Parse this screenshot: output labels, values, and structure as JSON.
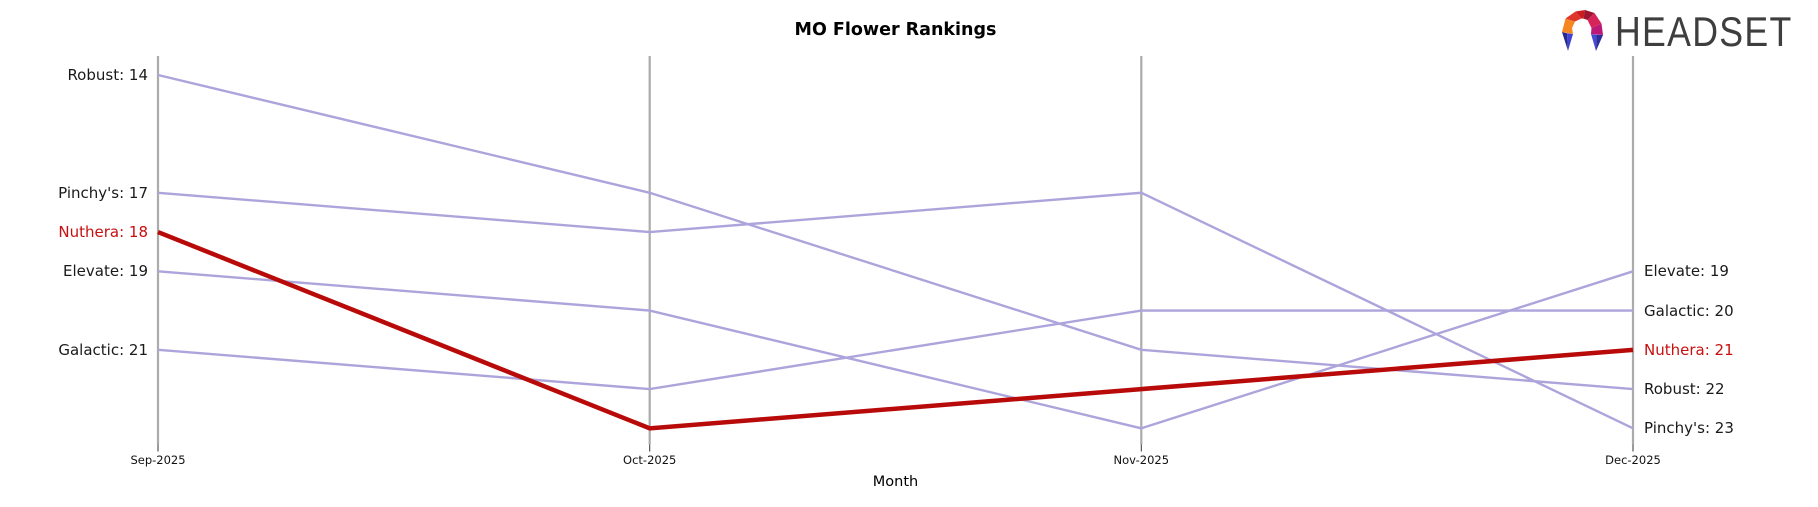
{
  "header": {
    "logo": {
      "text": "HEADSET",
      "icon": "headset-faceted-horseshoe-icon",
      "icon_colors": [
        "#f6861f",
        "#e0352b",
        "#cc1b20",
        "#9c1430",
        "#d62458",
        "#bb1877",
        "#4343d0",
        "#262a8f"
      ]
    }
  },
  "chart_data": {
    "type": "line",
    "variant": "bump_ranking_parallel_axes",
    "title": "MO Flower Rankings",
    "xlabel": "Month",
    "categories": [
      "Sep-2025",
      "Oct-2025",
      "Nov-2025",
      "Dec-2025"
    ],
    "y_axis": {
      "unit": "rank",
      "inverted": true,
      "visible_rank_range": [
        14,
        23
      ],
      "tick_labels": "none"
    },
    "grid": false,
    "legend": "none (series labeled at line endpoints)",
    "axis_color": "#ababab",
    "tick_color": "#333333",
    "series": [
      {
        "name": "Robust",
        "values": [
          14,
          17,
          21,
          22
        ],
        "color": "#ada4db",
        "line_width": 2.4,
        "emphasis": false
      },
      {
        "name": "Pinchy's",
        "values": [
          17,
          18,
          17,
          23
        ],
        "color": "#ada4db",
        "line_width": 2.4,
        "emphasis": false
      },
      {
        "name": "Nuthera",
        "values": [
          18,
          23,
          22,
          21
        ],
        "color": "#b90a0a",
        "line_width": 4.5,
        "emphasis": true
      },
      {
        "name": "Elevate",
        "values": [
          19,
          20,
          23,
          19
        ],
        "color": "#ada4db",
        "line_width": 2.4,
        "emphasis": false
      },
      {
        "name": "Galactic",
        "values": [
          21,
          22,
          20,
          20
        ],
        "color": "#ada4db",
        "line_width": 2.4,
        "emphasis": false
      }
    ],
    "left_labels": [
      {
        "text": "Robust: 14",
        "rank": 14,
        "color": "#1a1a1a"
      },
      {
        "text": "Pinchy's: 17",
        "rank": 17,
        "color": "#1a1a1a"
      },
      {
        "text": "Nuthera: 18",
        "rank": 18,
        "color": "#c80f0f"
      },
      {
        "text": "Elevate: 19",
        "rank": 19,
        "color": "#1a1a1a"
      },
      {
        "text": "Galactic: 21",
        "rank": 21,
        "color": "#1a1a1a"
      }
    ],
    "right_labels": [
      {
        "text": "Elevate: 19",
        "rank": 19,
        "color": "#1a1a1a"
      },
      {
        "text": "Galactic: 20",
        "rank": 20,
        "color": "#1a1a1a"
      },
      {
        "text": "Nuthera: 21",
        "rank": 21,
        "color": "#c80f0f"
      },
      {
        "text": "Robust: 22",
        "rank": 22,
        "color": "#1a1a1a"
      },
      {
        "text": "Pinchy's: 23",
        "rank": 23,
        "color": "#1a1a1a"
      }
    ]
  }
}
